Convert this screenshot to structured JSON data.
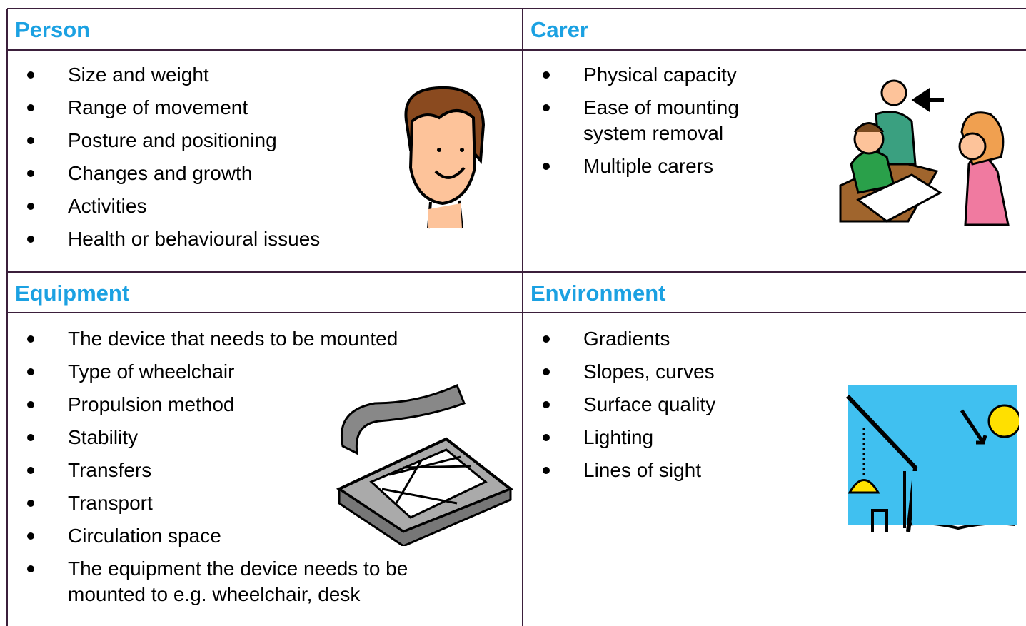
{
  "sections": [
    {
      "title": "Person",
      "items": [
        "Size and weight",
        "Range of movement",
        "Posture and positioning",
        "Changes and growth",
        "Activities",
        "Health or behavioural issues"
      ]
    },
    {
      "title": "Carer",
      "items": [
        "Physical capacity",
        "Ease of mounting system removal",
        "Multiple carers"
      ]
    },
    {
      "title": "Equipment",
      "items": [
        "The device that needs to be mounted",
        "Type of wheelchair",
        "Propulsion method",
        "Stability",
        "Transfers",
        "Transport",
        "Circulation space",
        "The equipment the device needs to be mounted to e.g. wheelchair, desk"
      ]
    },
    {
      "title": "Environment",
      "items": [
        "Gradients",
        "Slopes, curves",
        "Surface quality",
        "Lighting",
        "Lines of sight"
      ]
    }
  ]
}
